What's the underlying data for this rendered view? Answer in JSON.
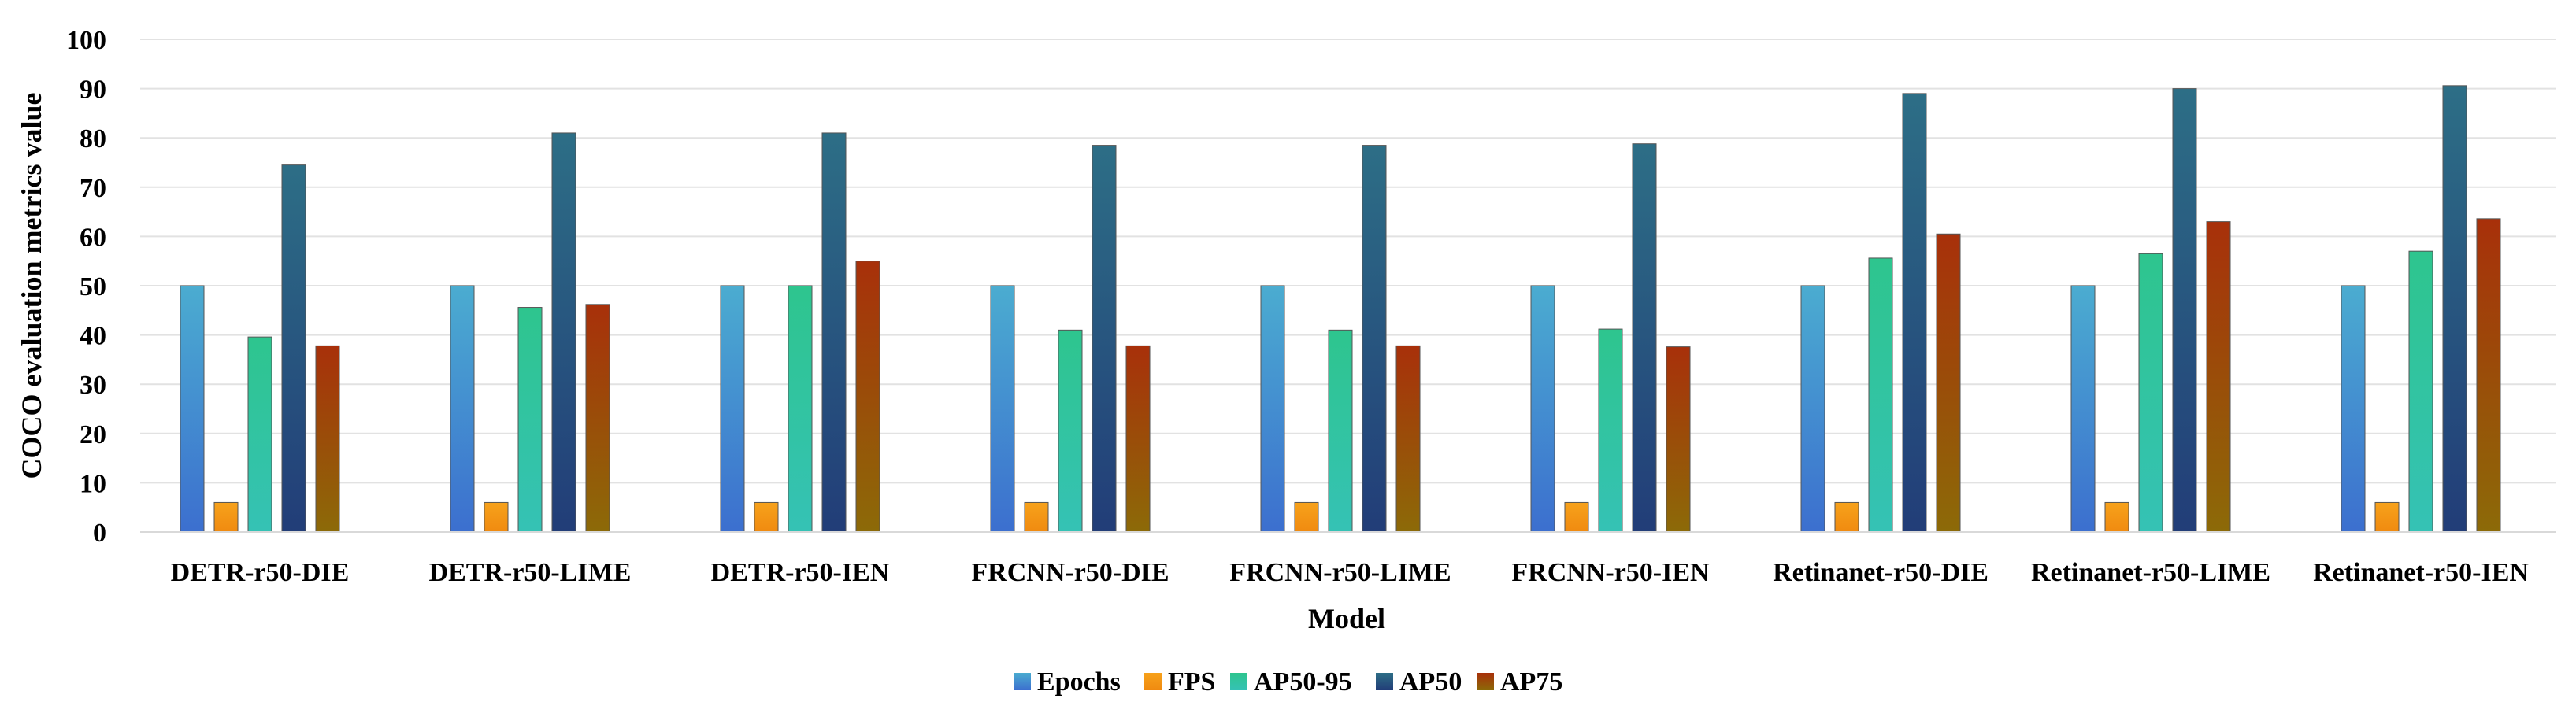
{
  "chart_data": {
    "type": "bar",
    "title": "",
    "xlabel": "Model",
    "ylabel": "COCO evaluation metrics value",
    "ylim": [
      0,
      100
    ],
    "yticks": [
      0,
      10,
      20,
      30,
      40,
      50,
      60,
      70,
      80,
      90,
      100
    ],
    "grid": true,
    "legend_position": "bottom",
    "categories": [
      "DETR-r50-DIE",
      "DETR-r50-LIME",
      "DETR-r50-IEN",
      "FRCNN-r50-DIE",
      "FRCNN-r50-LIME",
      "FRCNN-r50-IEN",
      "Retinanet-r50-DIE",
      "Retinanet-r50-LIME",
      "Retinanet-r50-IEN"
    ],
    "series": [
      {
        "name": "Epochs",
        "color_top": "#4BACD0",
        "color_bottom": "#3C6FCF",
        "values": [
          50,
          50,
          50,
          50,
          50,
          50,
          50,
          50,
          50
        ]
      },
      {
        "name": "FPS",
        "color_top": "#F7A21B",
        "color_bottom": "#F08A10",
        "values": [
          6,
          6,
          6,
          6,
          6,
          6,
          6,
          6,
          6
        ]
      },
      {
        "name": "AP50-95",
        "color_top": "#2EC58E",
        "color_bottom": "#35C2B5",
        "values": [
          39.6,
          45.6,
          50,
          41,
          41,
          41.2,
          55.6,
          56.5,
          57
        ]
      },
      {
        "name": "AP50",
        "color_top": "#2D6E86",
        "color_bottom": "#223D78",
        "values": [
          74.5,
          81,
          81,
          78.5,
          78.5,
          78.8,
          89,
          90,
          90.6
        ]
      },
      {
        "name": "AP75",
        "color_top": "#A8300A",
        "color_bottom": "#8C6A08",
        "values": [
          37.8,
          46.2,
          55,
          37.8,
          37.8,
          37.6,
          60.5,
          63,
          63.6
        ]
      }
    ]
  }
}
